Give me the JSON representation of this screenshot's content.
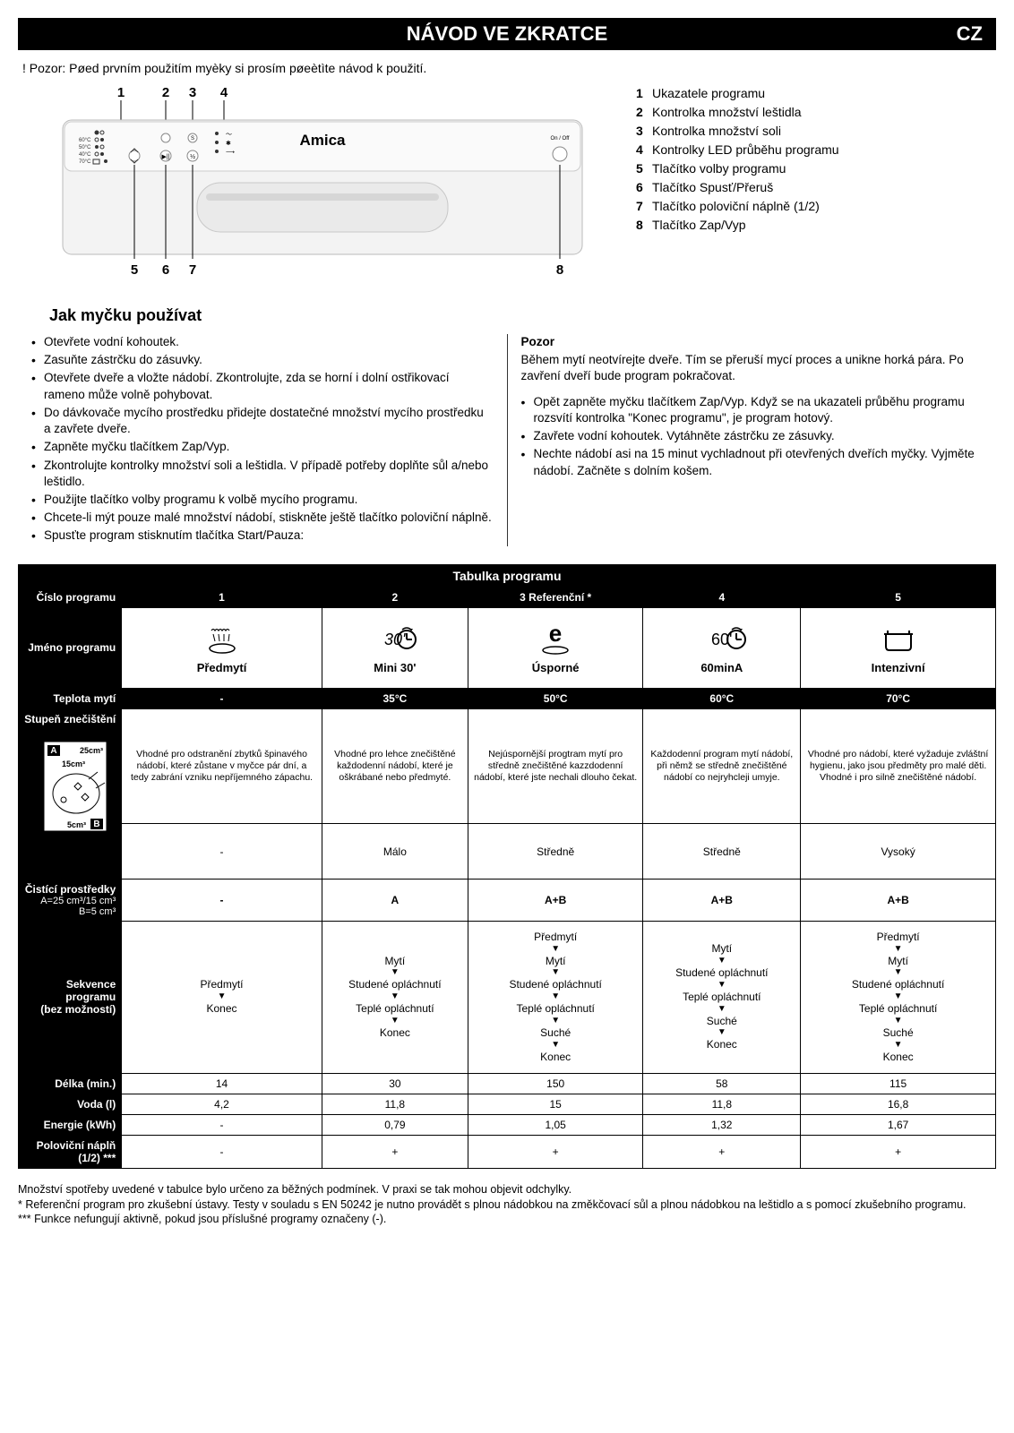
{
  "header": {
    "title": "NÁVOD VE ZKRATCE",
    "lang": "CZ"
  },
  "warning": "! Pozor: Pøed prvním použitím myèky si prosím pøeètìte návod k použití.",
  "diagram": {
    "brand": "Amica",
    "topLabels": [
      "1",
      "2",
      "3",
      "4"
    ],
    "bottomLabels": [
      "5",
      "6",
      "7",
      "8"
    ],
    "onoff": "On / Off"
  },
  "legend": [
    {
      "n": "1",
      "t": "Ukazatele programu"
    },
    {
      "n": "2",
      "t": "Kontrolka množství leštidla"
    },
    {
      "n": "3",
      "t": "Kontrolka množství soli"
    },
    {
      "n": "4",
      "t": "Kontrolky LED průběhu programu"
    },
    {
      "n": "5",
      "t": "Tlačítko volby programu"
    },
    {
      "n": "6",
      "t": "Tlačítko Spusť/Přeruš"
    },
    {
      "n": "7",
      "t": "Tlačítko poloviční náplně (1/2)"
    },
    {
      "n": "8",
      "t": "Tlačítko Zap/Vyp"
    }
  ],
  "sectionTitle": "Jak myčku používat",
  "leftBullets": [
    "Otevřete vodní kohoutek.",
    "Zasuňte zástrčku do zásuvky.",
    "Otevřete dveře a vložte nádobí. Zkontrolujte, zda se horní i dolní ostřikovací rameno může volně pohybovat.",
    "Do dávkovače mycího prostředku přidejte dostatečné množství mycího prostředku a zavřete dveře.",
    "Zapněte myčku tlačítkem Zap/Vyp.",
    "Zkontrolujte kontrolky množství soli a leštidla. V případě potřeby doplňte sůl a/nebo leštidlo.",
    "Použijte tlačítko volby programu k volbě mycího programu.",
    "Chcete-li mýt pouze malé množství nádobí, stiskněte ještě tlačítko poloviční náplně.",
    "Spusťte program stisknutím tlačítka Start/Pauza:"
  ],
  "right": {
    "pozorHead": "Pozor",
    "pozorText": "Během mytí neotvírejte dveře. Tím se přeruší mycí proces a unikne horká pára. Po zavření dveří bude program pokračovat.",
    "bullets": [
      "Opět zapněte myčku tlačítkem Zap/Vyp. Když se na ukazateli průběhu programu rozsvítí kontrolka \"Konec programu\", je program hotový.",
      "Zavřete vodní kohoutek. Vytáhněte zástrčku ze zásuvky.",
      "Nechte nádobí asi na 15 minut vychladnout při otevřených dveřích myčky. Vyjměte nádobí. Začněte s dolním košem."
    ]
  },
  "table": {
    "title": "Tabulka programu",
    "rowLabels": {
      "progNum": "Číslo programu",
      "progName": "Jméno programu",
      "temp": "Teplota mytí",
      "soil": "Stupeň znečištění",
      "detergent": "Čistící prostředky",
      "detergentSub": "A=25 cm³/15 cm³ B=5 cm³",
      "sequence": "Sekvence programu",
      "sequenceSub": "(bez možností)",
      "duration": "Délka (min.)",
      "water": "Voda (l)",
      "energy": "Energie (kWh)",
      "half": "Poloviční náplň (1/2) ***"
    },
    "soilIcon": {
      "a": "A",
      "aVal": "25cm³",
      "mid": "15cm³",
      "b": "B",
      "bVal": "5cm³"
    },
    "cols": [
      {
        "num": "1",
        "name": "Předmytí",
        "nameIcon": "prewash",
        "temp": "-",
        "desc": "Vhodné pro odstranění zbytků špinavého nádobí, které zůstane v myčce pár dní, a tedy zabrání vzniku nepříjemného zápachu.",
        "soilLevel": "-",
        "detergent": "-",
        "seq": [
          "Předmytí",
          "Konec"
        ],
        "duration": "14",
        "water": "4,2",
        "energy": "-",
        "half": "-"
      },
      {
        "num": "2",
        "name": "Mini 30'",
        "nameIcon": "mini30",
        "temp": "35°C",
        "desc": "Vhodné pro lehce znečištěné každodenní nádobí, které je oškrábané nebo předmyté.",
        "soilLevel": "Málo",
        "detergent": "A",
        "seq": [
          "Mytí",
          "Studené opláchnutí",
          "Teplé opláchnutí",
          "Konec"
        ],
        "duration": "30",
        "water": "11,8",
        "energy": "0,79",
        "half": "+"
      },
      {
        "num": "3 Referenční *",
        "name": "Úsporné",
        "nameIcon": "eco",
        "temp": "50°C",
        "desc": "Nejúspornější progtram mytí pro středně znečištěné kazzdodenní nádobí, které jste nechali dlouho čekat.",
        "soilLevel": "Středně",
        "detergent": "A+B",
        "seq": [
          "Předmytí",
          "Mytí",
          "Studené opláchnutí",
          "Teplé opláchnutí",
          "Suché",
          "Konec"
        ],
        "duration": "150",
        "water": "15",
        "energy": "1,05",
        "half": "+"
      },
      {
        "num": "4",
        "name": "60minA",
        "nameIcon": "60min",
        "nameTemp": "60'",
        "temp": "60°C",
        "desc": "Každodenní program mytí nádobí, při němž se středně znečištěné nádobí co nejryhcleji umyje.",
        "soilLevel": "Středně",
        "detergent": "A+B",
        "seq": [
          "Mytí",
          "Studené opláchnutí",
          "Teplé opláchnutí",
          "Suché",
          "Konec"
        ],
        "duration": "58",
        "water": "11,8",
        "energy": "1,32",
        "half": "+"
      },
      {
        "num": "5",
        "name": "Intenzivní",
        "nameIcon": "intensive",
        "temp": "70°C",
        "desc": "Vhodné pro nádobí, které vyžaduje zvláštní hygienu, jako jsou předměty pro malé děti. Vhodné i pro silně znečištěné nádobí.",
        "soilLevel": "Vysoký",
        "detergent": "A+B",
        "seq": [
          "Předmytí",
          "Mytí",
          "Studené opláchnutí",
          "Teplé opláchnutí",
          "Suché",
          "Konec"
        ],
        "duration": "115",
        "water": "16,8",
        "energy": "1,67",
        "half": "+"
      }
    ]
  },
  "footnotes": [
    "Množství spotřeby uvedené v tabulce bylo určeno za běžných podmínek. V praxi se tak mohou objevit odchylky.",
    "* Referenční program pro zkušební ústavy. Testy v souladu s EN 50242 je nutno provádět s plnou nádobkou na změkčovací sůl a plnou nádobkou na leštidlo a s pomocí zkušebního programu.",
    "*** Funkce nefungují aktivně, pokud jsou příslušné programy označeny (-)."
  ],
  "colors": {
    "black": "#000000",
    "white": "#ffffff",
    "panelGray": "#f3f3f3",
    "panelShadow": "#d8d8d8"
  }
}
